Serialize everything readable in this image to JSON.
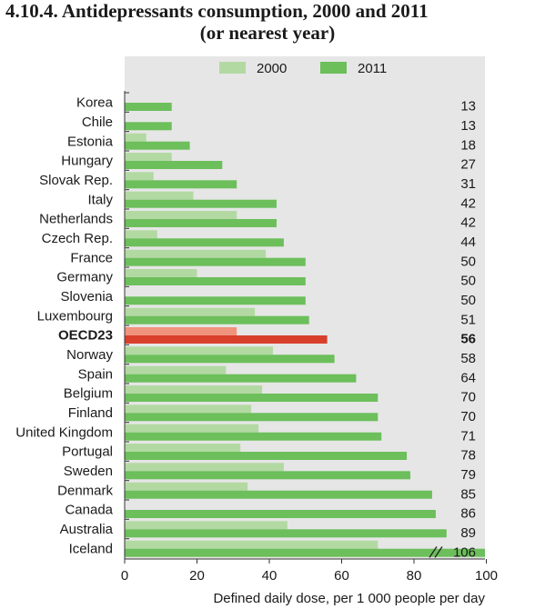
{
  "chart_data": {
    "type": "bar",
    "orientation": "horizontal",
    "title_line1": "4.10.4. Antidepressants consumption, 2000 and 2011",
    "title_line2": "(or nearest year)",
    "xlabel": "Defined daily dose, per 1 000 people per day",
    "xlim": [
      0,
      100
    ],
    "xticks": [
      "0",
      "20",
      "40",
      "60",
      "80",
      "100"
    ],
    "categories": [
      "Korea",
      "Chile",
      "Estonia",
      "Hungary",
      "Slovak Rep.",
      "Italy",
      "Netherlands",
      "Czech Rep.",
      "France",
      "Germany",
      "Slovenia",
      "Luxembourg",
      "OECD23",
      "Norway",
      "Spain",
      "Belgium",
      "Finland",
      "United Kingdom",
      "Portugal",
      "Sweden",
      "Denmark",
      "Canada",
      "Australia",
      "Iceland"
    ],
    "highlight": "OECD23",
    "series": [
      {
        "name": "2000",
        "color": "#b3d9a3",
        "values": [
          null,
          null,
          6,
          13,
          8,
          19,
          31,
          9,
          39,
          20,
          null,
          36,
          31,
          41,
          28,
          38,
          35,
          37,
          32,
          44,
          34,
          null,
          45,
          70
        ]
      },
      {
        "name": "2011",
        "color": "#6cbf5b",
        "values": [
          13,
          13,
          18,
          27,
          31,
          42,
          42,
          44,
          50,
          50,
          50,
          51,
          56,
          58,
          64,
          70,
          70,
          71,
          78,
          79,
          85,
          86,
          89,
          106
        ]
      }
    ],
    "value_labels": [
      "13",
      "13",
      "18",
      "27",
      "31",
      "42",
      "42",
      "44",
      "50",
      "50",
      "50",
      "51",
      "56",
      "58",
      "64",
      "70",
      "70",
      "71",
      "78",
      "79",
      "85",
      "86",
      "89",
      "106"
    ],
    "highlight_colors": {
      "2000": "#f0937d",
      "2011": "#d9402b"
    },
    "axis_break": "Iceland",
    "legend": "top",
    "background": "#e6e6e6",
    "grid": false
  }
}
